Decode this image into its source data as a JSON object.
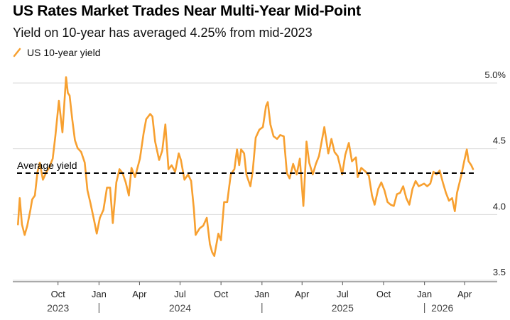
{
  "chart_data": {
    "type": "line",
    "title": "US Rates Market Trades Near Multi-Year Mid-Point",
    "subtitle": "Yield on 10-year has averaged 4.25% from mid-2023",
    "legend_position": "top-left",
    "grid": true,
    "colors": {
      "series": "#f7a030",
      "grid": "#d9d9d9",
      "axis": "#555555",
      "average": "#000000"
    },
    "y_ticks": [
      {
        "value": 3.5,
        "label": "3.5"
      },
      {
        "value": 4.0,
        "label": "4.0"
      },
      {
        "value": 4.5,
        "label": "4.5"
      },
      {
        "value": 5.0,
        "label": "5.0%"
      }
    ],
    "ylim": [
      3.45,
      5.05
    ],
    "xlim": [
      "2023-07-01",
      "2026-04-20"
    ],
    "x_ticks": [
      {
        "date": "2023-10-01",
        "label": "Oct"
      },
      {
        "date": "2024-01-01",
        "label": "Jan"
      },
      {
        "date": "2024-04-01",
        "label": "Apr"
      },
      {
        "date": "2024-07-01",
        "label": "Jul"
      },
      {
        "date": "2024-10-01",
        "label": "Oct"
      },
      {
        "date": "2025-01-01",
        "label": "Jan"
      },
      {
        "date": "2025-04-01",
        "label": "Apr"
      },
      {
        "date": "2025-07-01",
        "label": "Jul"
      },
      {
        "date": "2025-10-01",
        "label": "Oct"
      },
      {
        "date": "2026-01-01",
        "label": "Jan"
      },
      {
        "date": "2026-04-01",
        "label": "Apr"
      }
    ],
    "year_labels": [
      {
        "label": "2023",
        "center": "2023-10-01"
      },
      {
        "label": "2024",
        "center": "2024-07-01"
      },
      {
        "label": "2025",
        "center": "2025-07-01"
      },
      {
        "label": "2026",
        "center": "2026-02-10"
      }
    ],
    "year_separators": [
      "2024-01-01",
      "2025-01-01",
      "2026-01-01"
    ],
    "average": {
      "label": "Average yield",
      "value": 4.25
    },
    "series": [
      {
        "name": "US 10-year yield",
        "points": [
          [
            "2023-07-03",
            3.86
          ],
          [
            "2023-07-07",
            4.06
          ],
          [
            "2023-07-12",
            3.86
          ],
          [
            "2023-07-18",
            3.78
          ],
          [
            "2023-07-24",
            3.85
          ],
          [
            "2023-07-31",
            3.97
          ],
          [
            "2023-08-04",
            4.05
          ],
          [
            "2023-08-10",
            4.08
          ],
          [
            "2023-08-16",
            4.26
          ],
          [
            "2023-08-21",
            4.33
          ],
          [
            "2023-08-28",
            4.2
          ],
          [
            "2023-09-05",
            4.26
          ],
          [
            "2023-09-11",
            4.29
          ],
          [
            "2023-09-19",
            4.36
          ],
          [
            "2023-09-25",
            4.53
          ],
          [
            "2023-10-03",
            4.8
          ],
          [
            "2023-10-11",
            4.56
          ],
          [
            "2023-10-19",
            4.98
          ],
          [
            "2023-10-23",
            4.86
          ],
          [
            "2023-10-27",
            4.84
          ],
          [
            "2023-11-02",
            4.66
          ],
          [
            "2023-11-08",
            4.5
          ],
          [
            "2023-11-14",
            4.44
          ],
          [
            "2023-11-22",
            4.41
          ],
          [
            "2023-11-30",
            4.33
          ],
          [
            "2023-12-06",
            4.12
          ],
          [
            "2023-12-13",
            4.02
          ],
          [
            "2023-12-21",
            3.89
          ],
          [
            "2023-12-27",
            3.79
          ],
          [
            "2024-01-03",
            3.91
          ],
          [
            "2024-01-11",
            3.97
          ],
          [
            "2024-01-19",
            4.14
          ],
          [
            "2024-01-26",
            4.14
          ],
          [
            "2024-02-01",
            3.87
          ],
          [
            "2024-02-09",
            4.18
          ],
          [
            "2024-02-16",
            4.28
          ],
          [
            "2024-02-23",
            4.25
          ],
          [
            "2024-03-01",
            4.18
          ],
          [
            "2024-03-08",
            4.08
          ],
          [
            "2024-03-14",
            4.29
          ],
          [
            "2024-03-22",
            4.22
          ],
          [
            "2024-04-02",
            4.36
          ],
          [
            "2024-04-10",
            4.55
          ],
          [
            "2024-04-16",
            4.66
          ],
          [
            "2024-04-25",
            4.7
          ],
          [
            "2024-04-30",
            4.68
          ],
          [
            "2024-05-06",
            4.49
          ],
          [
            "2024-05-15",
            4.35
          ],
          [
            "2024-05-22",
            4.42
          ],
          [
            "2024-05-29",
            4.62
          ],
          [
            "2024-06-05",
            4.28
          ],
          [
            "2024-06-12",
            4.31
          ],
          [
            "2024-06-20",
            4.26
          ],
          [
            "2024-06-28",
            4.4
          ],
          [
            "2024-07-03",
            4.35
          ],
          [
            "2024-07-11",
            4.2
          ],
          [
            "2024-07-19",
            4.24
          ],
          [
            "2024-07-26",
            4.19
          ],
          [
            "2024-08-01",
            3.98
          ],
          [
            "2024-08-05",
            3.78
          ],
          [
            "2024-08-14",
            3.83
          ],
          [
            "2024-08-22",
            3.85
          ],
          [
            "2024-08-30",
            3.91
          ],
          [
            "2024-09-06",
            3.71
          ],
          [
            "2024-09-11",
            3.65
          ],
          [
            "2024-09-16",
            3.62
          ],
          [
            "2024-09-25",
            3.79
          ],
          [
            "2024-10-01",
            3.74
          ],
          [
            "2024-10-08",
            4.03
          ],
          [
            "2024-10-15",
            4.03
          ],
          [
            "2024-10-23",
            4.24
          ],
          [
            "2024-10-31",
            4.28
          ],
          [
            "2024-11-06",
            4.43
          ],
          [
            "2024-11-11",
            4.31
          ],
          [
            "2024-11-15",
            4.43
          ],
          [
            "2024-11-22",
            4.4
          ],
          [
            "2024-11-27",
            4.24
          ],
          [
            "2024-12-06",
            4.15
          ],
          [
            "2024-12-11",
            4.26
          ],
          [
            "2024-12-18",
            4.52
          ],
          [
            "2024-12-26",
            4.58
          ],
          [
            "2025-01-03",
            4.6
          ],
          [
            "2025-01-10",
            4.76
          ],
          [
            "2025-01-14",
            4.79
          ],
          [
            "2025-01-20",
            4.62
          ],
          [
            "2025-01-27",
            4.53
          ],
          [
            "2025-02-04",
            4.51
          ],
          [
            "2025-02-11",
            4.54
          ],
          [
            "2025-02-19",
            4.53
          ],
          [
            "2025-02-26",
            4.25
          ],
          [
            "2025-03-04",
            4.21
          ],
          [
            "2025-03-12",
            4.32
          ],
          [
            "2025-03-20",
            4.24
          ],
          [
            "2025-03-27",
            4.36
          ],
          [
            "2025-04-04",
            4.0
          ],
          [
            "2025-04-09",
            4.34
          ],
          [
            "2025-04-11",
            4.49
          ],
          [
            "2025-04-17",
            4.33
          ],
          [
            "2025-04-25",
            4.24
          ],
          [
            "2025-05-02",
            4.32
          ],
          [
            "2025-05-09",
            4.38
          ],
          [
            "2025-05-21",
            4.6
          ],
          [
            "2025-05-30",
            4.4
          ],
          [
            "2025-06-06",
            4.51
          ],
          [
            "2025-06-13",
            4.41
          ],
          [
            "2025-06-20",
            4.38
          ],
          [
            "2025-06-30",
            4.24
          ],
          [
            "2025-07-07",
            4.39
          ],
          [
            "2025-07-15",
            4.48
          ],
          [
            "2025-07-22",
            4.34
          ],
          [
            "2025-07-31",
            4.37
          ],
          [
            "2025-08-04",
            4.22
          ],
          [
            "2025-08-12",
            4.29
          ],
          [
            "2025-08-22",
            4.26
          ],
          [
            "2025-08-29",
            4.23
          ],
          [
            "2025-09-05",
            4.08
          ],
          [
            "2025-09-11",
            4.01
          ],
          [
            "2025-09-19",
            4.13
          ],
          [
            "2025-09-26",
            4.18
          ],
          [
            "2025-10-03",
            4.12
          ],
          [
            "2025-10-10",
            4.03
          ],
          [
            "2025-10-17",
            4.01
          ],
          [
            "2025-10-24",
            4.0
          ],
          [
            "2025-10-31",
            4.09
          ],
          [
            "2025-11-07",
            4.1
          ],
          [
            "2025-11-14",
            4.15
          ],
          [
            "2025-11-21",
            4.06
          ],
          [
            "2025-11-28",
            4.01
          ],
          [
            "2025-12-05",
            4.13
          ],
          [
            "2025-12-12",
            4.19
          ],
          [
            "2025-12-19",
            4.15
          ],
          [
            "2025-12-31",
            4.17
          ],
          [
            "2026-01-07",
            4.15
          ],
          [
            "2026-01-14",
            4.17
          ],
          [
            "2026-01-21",
            4.26
          ],
          [
            "2026-01-28",
            4.24
          ],
          [
            "2026-02-04",
            4.27
          ],
          [
            "2026-02-11",
            4.18
          ],
          [
            "2026-02-18",
            4.1
          ],
          [
            "2026-02-25",
            4.04
          ],
          [
            "2026-03-04",
            4.06
          ],
          [
            "2026-03-10",
            3.96
          ],
          [
            "2026-03-15",
            4.1
          ],
          [
            "2026-03-20",
            4.17
          ],
          [
            "2026-03-25",
            4.24
          ],
          [
            "2026-03-31",
            4.34
          ],
          [
            "2026-04-06",
            4.43
          ],
          [
            "2026-04-10",
            4.34
          ],
          [
            "2026-04-16",
            4.31
          ],
          [
            "2026-04-20",
            4.28
          ]
        ]
      }
    ]
  }
}
